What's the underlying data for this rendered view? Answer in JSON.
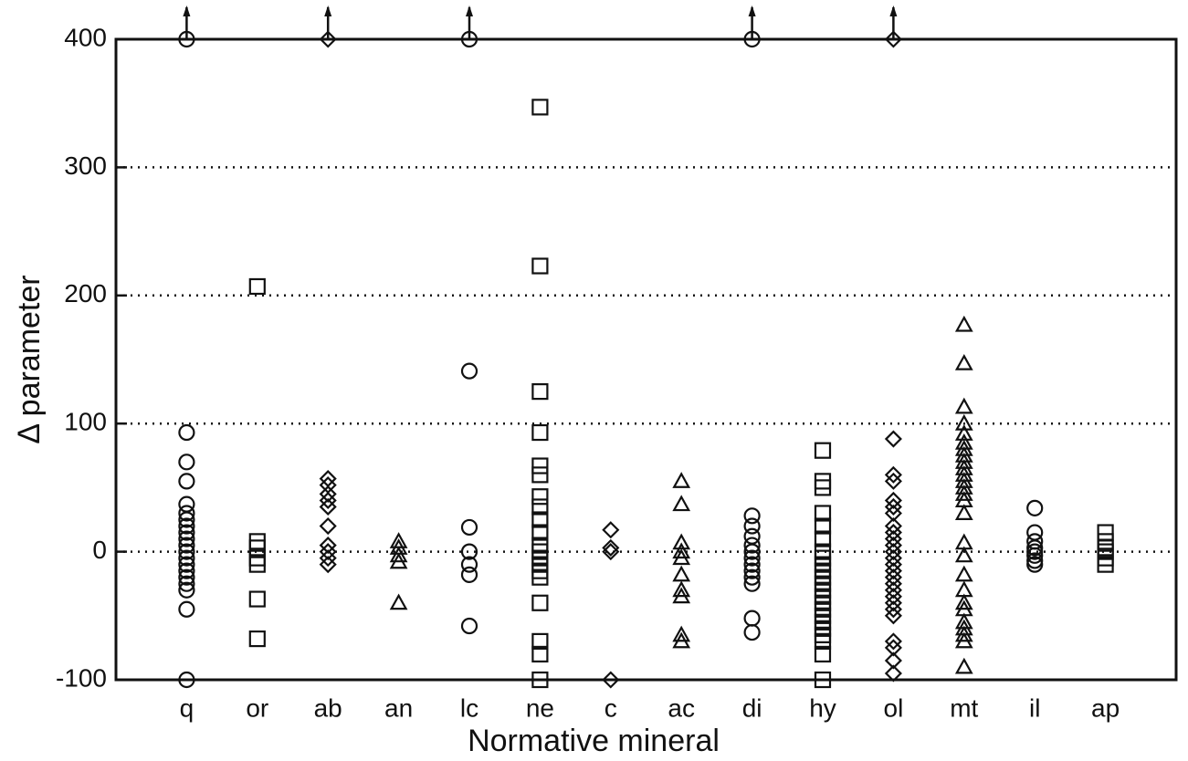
{
  "chart_data": {
    "type": "strip",
    "x_label": "Normative mineral",
    "y_label": "Δ parameter",
    "categories": [
      "q",
      "or",
      "ab",
      "an",
      "lc",
      "ne",
      "c",
      "ac",
      "di",
      "hy",
      "ol",
      "mt",
      "il",
      "ap"
    ],
    "markers": [
      "circle",
      "square",
      "diamond",
      "triangle",
      "circle",
      "square",
      "diamond",
      "triangle",
      "circle",
      "square",
      "diamond",
      "triangle",
      "circle",
      "square"
    ],
    "values": [
      [
        400,
        93,
        70,
        55,
        37,
        30,
        25,
        20,
        15,
        10,
        5,
        0,
        -5,
        -10,
        -15,
        -20,
        -25,
        -30,
        -45,
        -100
      ],
      [
        207,
        8,
        3,
        -5,
        -10,
        -37,
        -68
      ],
      [
        400,
        57,
        52,
        45,
        40,
        35,
        20,
        5,
        0,
        -5,
        -10
      ],
      [
        8,
        3,
        -3,
        -8,
        -40
      ],
      [
        400,
        141,
        19,
        0,
        -10,
        -18,
        -58
      ],
      [
        347,
        223,
        125,
        93,
        67,
        60,
        43,
        35,
        25,
        15,
        5,
        0,
        -5,
        -10,
        -15,
        -20,
        -40,
        -70,
        -80,
        -100
      ],
      [
        17,
        3,
        0,
        -100
      ],
      [
        55,
        37,
        7,
        0,
        -5,
        -18,
        -30,
        -35,
        -65,
        -70
      ],
      [
        400,
        28,
        20,
        12,
        5,
        0,
        -5,
        -10,
        -15,
        -20,
        -25,
        -52,
        -63
      ],
      [
        79,
        55,
        50,
        30,
        20,
        10,
        0,
        -5,
        -10,
        -15,
        -20,
        -25,
        -30,
        -35,
        -40,
        -45,
        -50,
        -55,
        -60,
        -65,
        -70,
        -80,
        -100
      ],
      [
        400,
        88,
        60,
        55,
        40,
        35,
        30,
        20,
        15,
        10,
        5,
        0,
        -5,
        -10,
        -15,
        -20,
        -25,
        -30,
        -35,
        -40,
        -45,
        -50,
        -70,
        -75,
        -85,
        -95
      ],
      [
        177,
        147,
        113,
        100,
        92,
        85,
        80,
        75,
        70,
        65,
        60,
        55,
        50,
        45,
        40,
        30,
        7,
        -3,
        -18,
        -30,
        -40,
        -45,
        -55,
        -60,
        -65,
        -70,
        -90
      ],
      [
        34,
        15,
        8,
        3,
        0,
        -3,
        -7,
        -10
      ],
      [
        15,
        8,
        3,
        0,
        -5,
        -10
      ]
    ],
    "ylim": [
      -100,
      400
    ],
    "yticks": [
      -100,
      0,
      100,
      200,
      300,
      400
    ],
    "grid": true,
    "color": "#111111"
  }
}
